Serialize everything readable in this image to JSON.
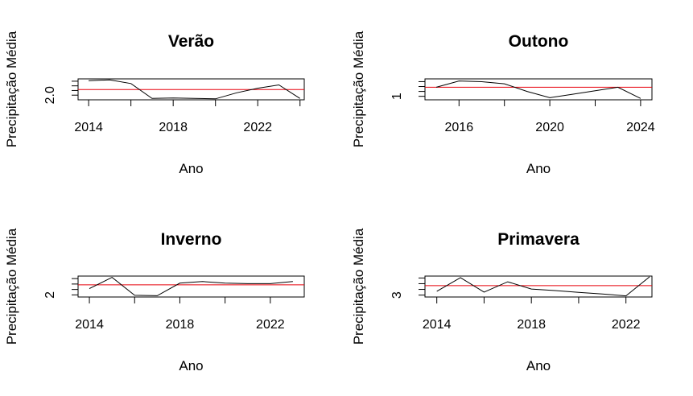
{
  "colors": {
    "series_line": "#000000",
    "mean_line": "#e8000b",
    "axis": "#000000"
  },
  "chart_data": [
    {
      "type": "line",
      "title": "Verão",
      "xlabel": "Ano",
      "ylabel": "Precipitação Média",
      "xlim": [
        2013.5,
        2024.2
      ],
      "ylim": [
        1.9,
        2.35
      ],
      "x_ticks": [
        2014,
        2018,
        2022
      ],
      "x_minor_ticks": [
        2016,
        2020,
        2024
      ],
      "y_ticks": [
        2.0
      ],
      "y_tick_labels": [
        "2.0"
      ],
      "y_minor_ticks": [
        2.1,
        2.2,
        2.3
      ],
      "grid": false,
      "series": [
        {
          "x": [
            2014,
            2015,
            2016,
            2017,
            2018,
            2019,
            2020,
            2021,
            2022,
            2023,
            2024
          ],
          "y": [
            2.31,
            2.33,
            2.25,
            1.93,
            1.94,
            1.93,
            1.92,
            2.05,
            2.15,
            2.22,
            1.93
          ]
        }
      ],
      "mean": 2.12
    },
    {
      "type": "line",
      "title": "Outono",
      "xlabel": "Ano",
      "ylabel": "Precipitação Média",
      "xlim": [
        2014.5,
        2024.5
      ],
      "ylim": [
        0.95,
        1.25
      ],
      "x_ticks": [
        2016,
        2020,
        2024
      ],
      "x_minor_ticks": [
        2018,
        2022
      ],
      "y_ticks": [
        1
      ],
      "y_tick_labels": [
        "1"
      ],
      "y_minor_ticks": [
        1.07,
        1.14,
        1.21
      ],
      "grid": false,
      "series": [
        {
          "x": [
            2015,
            2016,
            2017,
            2018,
            2019,
            2020,
            2021,
            2022,
            2023,
            2024
          ],
          "y": [
            1.13,
            1.22,
            1.21,
            1.18,
            1.07,
            0.98,
            1.03,
            1.08,
            1.13,
            0.97
          ]
        }
      ],
      "mean": 1.13
    },
    {
      "type": "line",
      "title": "Inverno",
      "xlabel": "Ano",
      "ylabel": "Precipitação Média",
      "xlim": [
        2013.5,
        2023.5
      ],
      "ylim": [
        1.95,
        2.45
      ],
      "x_ticks": [
        2014,
        2018,
        2022
      ],
      "x_minor_ticks": [
        2016,
        2020
      ],
      "y_ticks": [
        2
      ],
      "y_tick_labels": [
        "2"
      ],
      "y_minor_ticks": [
        2.13,
        2.26,
        2.39
      ],
      "grid": false,
      "series": [
        {
          "x": [
            2014,
            2015,
            2016,
            2017,
            2018,
            2019,
            2020,
            2021,
            2022,
            2023
          ],
          "y": [
            2.15,
            2.42,
            1.99,
            1.98,
            2.28,
            2.32,
            2.28,
            2.27,
            2.27,
            2.32
          ]
        }
      ],
      "mean": 2.24
    },
    {
      "type": "line",
      "title": "Primavera",
      "xlabel": "Ano",
      "ylabel": "Precipitação Média",
      "xlim": [
        2013.5,
        2023.1
      ],
      "ylim": [
        2.95,
        3.5
      ],
      "x_ticks": [
        2014,
        2018,
        2022
      ],
      "x_minor_ticks": [
        2016,
        2020
      ],
      "y_ticks": [
        3
      ],
      "y_tick_labels": [
        "3"
      ],
      "y_minor_ticks": [
        3.15,
        3.3,
        3.45
      ],
      "grid": false,
      "series": [
        {
          "x": [
            2014,
            2015,
            2016,
            2017,
            2018,
            2019,
            2020,
            2021,
            2022,
            2023
          ],
          "y": [
            3.1,
            3.46,
            3.08,
            3.35,
            3.16,
            3.12,
            3.07,
            3.03,
            2.98,
            3.48
          ]
        }
      ],
      "mean": 3.25
    }
  ]
}
